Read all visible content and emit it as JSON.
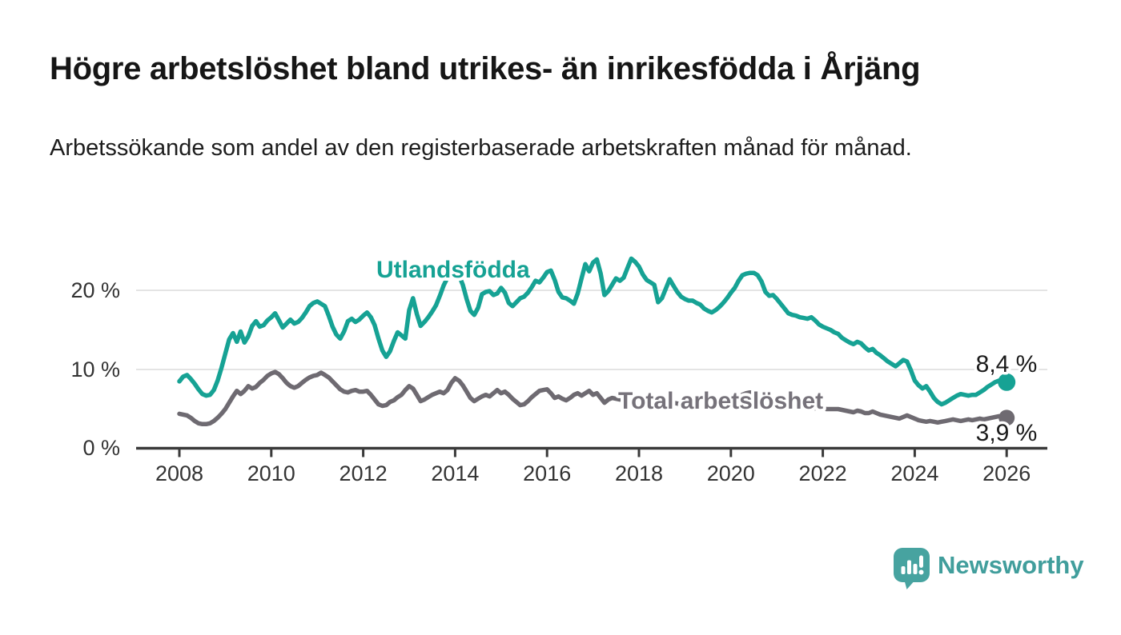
{
  "title": "Högre arbetslöshet bland utrikes- än inrikesfödda i Årjäng",
  "subtitle": "Arbetssökande som andel av den registerbaserade arbetskraften månad för månad.",
  "branding": {
    "logo_text": "Newsworthy",
    "logo_icon": "speech-bubble-bar-chart-icon",
    "logo_color": "#47a3a0"
  },
  "colors": {
    "foreign_born_line": "#16a294",
    "total_line": "#6e6a71",
    "axis": "#3a3a3a",
    "grid": "#dcdcdc",
    "data_label_text": "#1b1b1b"
  },
  "chart_data": {
    "type": "line",
    "x_interval": "monthly",
    "x_start": "2008-01",
    "x_end": "2026-01",
    "x_tick_labels": [
      "2008",
      "2010",
      "2012",
      "2014",
      "2016",
      "2018",
      "2020",
      "2022",
      "2024",
      "2026"
    ],
    "y_tick_labels": [
      "0 %",
      "10 %",
      "20 %"
    ],
    "y_unit": "%",
    "ylim": [
      0,
      25.5
    ],
    "grid": "horizontal",
    "legend_position": "inline-labels",
    "series": [
      {
        "name": "Utlandsfödda",
        "color": "#16a294",
        "end_label": "8,4 %",
        "end_value": 8.4,
        "values": [
          8.5,
          9.1,
          9.3,
          8.8,
          8.2,
          7.5,
          6.9,
          6.7,
          6.8,
          7.4,
          8.6,
          10.2,
          12.0,
          13.8,
          14.6,
          13.5,
          14.8,
          13.4,
          14.2,
          15.5,
          16.1,
          15.4,
          15.6,
          16.2,
          16.6,
          17.1,
          16.2,
          15.3,
          15.8,
          16.3,
          15.8,
          16.0,
          16.5,
          17.2,
          18.0,
          18.4,
          18.6,
          18.3,
          18.0,
          16.8,
          15.4,
          14.4,
          13.9,
          14.8,
          16.1,
          16.4,
          16.0,
          16.3,
          16.8,
          17.2,
          16.6,
          15.6,
          13.9,
          12.4,
          11.6,
          12.3,
          13.6,
          14.7,
          14.3,
          13.9,
          17.5,
          19.0,
          17.0,
          15.5,
          16.0,
          16.6,
          17.3,
          18.1,
          19.3,
          20.6,
          21.6,
          22.0,
          22.3,
          21.9,
          20.7,
          18.9,
          17.4,
          16.9,
          17.8,
          19.5,
          19.8,
          19.9,
          19.4,
          19.6,
          20.3,
          19.7,
          18.4,
          18.0,
          18.5,
          19.0,
          19.2,
          19.7,
          20.4,
          21.2,
          21.0,
          21.6,
          22.3,
          22.5,
          21.3,
          19.8,
          19.1,
          19.0,
          18.7,
          18.3,
          19.6,
          21.5,
          23.3,
          22.4,
          23.5,
          23.9,
          22.1,
          19.4,
          19.9,
          20.7,
          21.5,
          21.2,
          21.6,
          22.8,
          24.0,
          23.6,
          23.0,
          22.0,
          21.3,
          21.0,
          20.7,
          18.5,
          19.0,
          20.2,
          21.4,
          20.6,
          19.8,
          19.2,
          18.9,
          18.7,
          18.7,
          18.4,
          18.2,
          17.7,
          17.4,
          17.2,
          17.5,
          17.9,
          18.4,
          19.0,
          19.7,
          20.3,
          21.2,
          21.9,
          22.1,
          22.2,
          22.2,
          21.9,
          21.1,
          19.8,
          19.3,
          19.4,
          18.9,
          18.3,
          17.7,
          17.1,
          16.9,
          16.8,
          16.6,
          16.5,
          16.4,
          16.6,
          16.2,
          15.7,
          15.4,
          15.2,
          15.0,
          14.7,
          14.5,
          14.0,
          13.7,
          13.4,
          13.2,
          13.5,
          13.3,
          12.8,
          12.4,
          12.6,
          12.1,
          11.8,
          11.4,
          11.0,
          10.7,
          10.4,
          10.8,
          11.2,
          11.0,
          9.9,
          8.6,
          8.0,
          7.6,
          7.9,
          7.2,
          6.4,
          5.9,
          5.6,
          5.8,
          6.1,
          6.4,
          6.7,
          6.9,
          6.8,
          6.7,
          6.8,
          6.8,
          7.1,
          7.4,
          7.8,
          8.1,
          8.4,
          8.6,
          8.5,
          8.4
        ]
      },
      {
        "name": "Total arbetslöshet",
        "color": "#6e6a71",
        "end_label": "3,9 %",
        "end_value": 3.9,
        "values": [
          4.4,
          4.3,
          4.2,
          3.9,
          3.5,
          3.2,
          3.1,
          3.1,
          3.2,
          3.5,
          3.9,
          4.4,
          5.0,
          5.8,
          6.6,
          7.3,
          6.9,
          7.3,
          7.9,
          7.6,
          7.8,
          8.3,
          8.7,
          9.2,
          9.5,
          9.7,
          9.4,
          8.9,
          8.3,
          7.9,
          7.7,
          7.9,
          8.3,
          8.7,
          9.0,
          9.2,
          9.3,
          9.6,
          9.3,
          9.0,
          8.5,
          8.0,
          7.5,
          7.2,
          7.1,
          7.3,
          7.4,
          7.2,
          7.2,
          7.3,
          6.8,
          6.2,
          5.6,
          5.4,
          5.5,
          5.9,
          6.1,
          6.5,
          6.8,
          7.4,
          7.9,
          7.6,
          6.8,
          6.0,
          6.2,
          6.5,
          6.8,
          7.0,
          7.2,
          7.0,
          7.4,
          8.3,
          8.9,
          8.6,
          8.0,
          7.2,
          6.4,
          6.0,
          6.3,
          6.6,
          6.8,
          6.6,
          7.0,
          7.4,
          7.0,
          7.2,
          6.8,
          6.3,
          5.9,
          5.5,
          5.6,
          6.0,
          6.5,
          6.9,
          7.3,
          7.4,
          7.5,
          7.0,
          6.4,
          6.6,
          6.3,
          6.1,
          6.4,
          6.8,
          7.0,
          6.7,
          7.0,
          7.3,
          6.8,
          7.0,
          6.4,
          5.8,
          6.2,
          6.4,
          6.3,
          6.2,
          6.3,
          6.4,
          6.5,
          6.4,
          6.2,
          6.1,
          6.0,
          5.9,
          5.8,
          5.6,
          5.7,
          5.9,
          6.0,
          5.8,
          5.7,
          5.6,
          5.6,
          5.7,
          5.6,
          5.5,
          5.4,
          5.3,
          5.4,
          5.5,
          5.6,
          5.7,
          5.8,
          5.9,
          6.0,
          6.2,
          6.5,
          6.8,
          7.0,
          7.1,
          7.0,
          6.9,
          6.7,
          6.4,
          6.2,
          6.1,
          6.0,
          5.9,
          5.8,
          5.7,
          5.6,
          5.5,
          5.4,
          5.3,
          5.2,
          5.2,
          5.1,
          5.1,
          5.1,
          5.0,
          5.0,
          5.0,
          5.0,
          4.9,
          4.8,
          4.7,
          4.6,
          4.8,
          4.7,
          4.5,
          4.5,
          4.7,
          4.5,
          4.3,
          4.2,
          4.1,
          4.0,
          3.9,
          3.8,
          4.0,
          4.2,
          4.0,
          3.8,
          3.6,
          3.5,
          3.4,
          3.5,
          3.4,
          3.3,
          3.4,
          3.5,
          3.6,
          3.7,
          3.6,
          3.5,
          3.6,
          3.7,
          3.6,
          3.7,
          3.8,
          3.7,
          3.8,
          3.9,
          4.0,
          4.1,
          4.0,
          3.9
        ]
      }
    ]
  }
}
